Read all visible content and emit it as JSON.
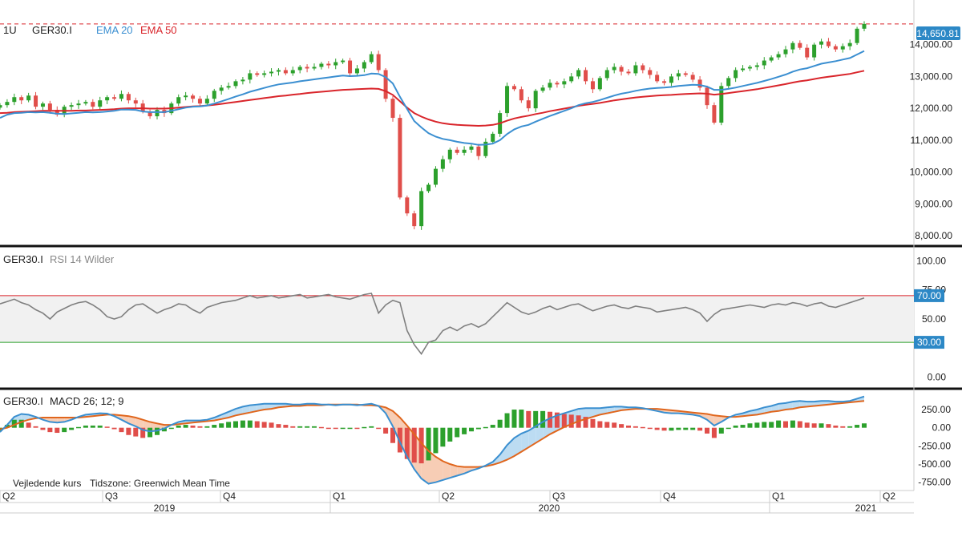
{
  "chart_data": [
    {
      "panel": "price",
      "type": "candlestick",
      "symbol": "GER30.I",
      "interval": "1U",
      "legend": [
        {
          "label": "EMA 20",
          "color": "#3b8fd1"
        },
        {
          "label": "EMA 50",
          "color": "#d9252b"
        }
      ],
      "last_price": "14,650.81",
      "last_price_value": 14650.81,
      "ylim": [
        7800,
        15200
      ],
      "y_ticks": [
        "14,000.00",
        "13,000.00",
        "12,000.00",
        "11,000.00",
        "10,000.00",
        "9,000.00",
        "8,000.00"
      ],
      "y_tick_values": [
        14000,
        13000,
        12000,
        11000,
        10000,
        9000,
        8000
      ],
      "closes": [
        12100,
        12200,
        12350,
        12250,
        12400,
        12050,
        12150,
        11950,
        11800,
        12050,
        12100,
        12150,
        12200,
        12050,
        12250,
        12350,
        12300,
        12450,
        12250,
        12150,
        11900,
        11750,
        11950,
        11850,
        12150,
        12350,
        12400,
        12300,
        12150,
        12300,
        12550,
        12650,
        12700,
        12850,
        12900,
        13100,
        13050,
        13100,
        13150,
        13200,
        13100,
        13200,
        13300,
        13250,
        13300,
        13400,
        13350,
        13450,
        13500,
        13100,
        13250,
        13450,
        13700,
        13200,
        12300,
        11700,
        9200,
        8700,
        8300,
        9400,
        9600,
        10100,
        10400,
        10700,
        10600,
        10700,
        10800,
        10500,
        10950,
        11200,
        11850,
        12700,
        12600,
        12250,
        12000,
        12550,
        12650,
        12800,
        12750,
        12850,
        13000,
        13200,
        12850,
        12600,
        12950,
        13200,
        13300,
        13150,
        13100,
        13350,
        13200,
        13050,
        12850,
        12800,
        13000,
        13100,
        13050,
        12900,
        12650,
        12100,
        11550,
        12700,
        12950,
        13200,
        13250,
        13300,
        13350,
        13500,
        13600,
        13700,
        13850,
        14050,
        13900,
        13600,
        14000,
        14100,
        13950,
        13850,
        13950,
        14050,
        14500,
        14650
      ],
      "ema20": [
        11700,
        11800,
        11850,
        11860,
        11880,
        11870,
        11880,
        11860,
        11830,
        11820,
        11840,
        11860,
        11880,
        11870,
        11880,
        11900,
        11920,
        11960,
        11960,
        11950,
        11900,
        11880,
        11880,
        11880,
        11920,
        11970,
        12020,
        12050,
        12060,
        12090,
        12150,
        12220,
        12290,
        12370,
        12440,
        12520,
        12580,
        12640,
        12700,
        12750,
        12780,
        12810,
        12850,
        12880,
        12910,
        12940,
        12970,
        13000,
        13030,
        13010,
        13020,
        13040,
        13090,
        13080,
        12980,
        12780,
        12360,
        11980,
        11600,
        11400,
        11220,
        11110,
        11040,
        11000,
        10950,
        10910,
        10890,
        10850,
        10860,
        10890,
        11000,
        11190,
        11340,
        11430,
        11480,
        11580,
        11670,
        11760,
        11840,
        11920,
        12000,
        12100,
        12160,
        12200,
        12260,
        12330,
        12400,
        12460,
        12500,
        12550,
        12590,
        12620,
        12640,
        12650,
        12670,
        12700,
        12720,
        12740,
        12730,
        12680,
        12580,
        12580,
        12610,
        12650,
        12700,
        12750,
        12800,
        12860,
        12920,
        12990,
        13060,
        13150,
        13220,
        13260,
        13330,
        13400,
        13440,
        13480,
        13530,
        13580,
        13690,
        13800
      ],
      "ema50": [
        11850,
        11860,
        11880,
        11890,
        11900,
        11910,
        11920,
        11920,
        11920,
        11920,
        11920,
        11930,
        11930,
        11940,
        11950,
        11960,
        11970,
        11990,
        12000,
        12000,
        12000,
        11990,
        11990,
        11990,
        12000,
        12020,
        12040,
        12060,
        12070,
        12090,
        12110,
        12140,
        12170,
        12200,
        12230,
        12260,
        12290,
        12320,
        12350,
        12380,
        12400,
        12430,
        12450,
        12480,
        12500,
        12520,
        12540,
        12560,
        12580,
        12590,
        12600,
        12610,
        12620,
        12610,
        12540,
        12420,
        12220,
        12020,
        11850,
        11740,
        11650,
        11580,
        11530,
        11500,
        11480,
        11470,
        11460,
        11450,
        11460,
        11480,
        11530,
        11610,
        11680,
        11730,
        11770,
        11820,
        11860,
        11910,
        11950,
        11990,
        12030,
        12080,
        12110,
        12140,
        12170,
        12210,
        12250,
        12280,
        12310,
        12340,
        12360,
        12380,
        12400,
        12410,
        12420,
        12440,
        12450,
        12460,
        12470,
        12460,
        12430,
        12450,
        12480,
        12510,
        12540,
        12570,
        12600,
        12640,
        12680,
        12720,
        12760,
        12810,
        12850,
        12880,
        12920,
        12960,
        12990,
        13020,
        13050,
        13080,
        13130,
        13180
      ]
    },
    {
      "panel": "rsi",
      "type": "line",
      "symbol": "GER30.I",
      "title": "RSI 14 Wilder",
      "ylim": [
        -5,
        105
      ],
      "y_ticks": [
        "100.00",
        "75.00",
        "50.00",
        "0.00"
      ],
      "y_tick_values": [
        100,
        75,
        50,
        0
      ],
      "overbought_label": "70.00",
      "overbought": 70,
      "oversold_label": "30.00",
      "oversold": 30,
      "values": [
        63,
        65,
        67,
        64,
        62,
        58,
        55,
        50,
        56,
        59,
        62,
        64,
        65,
        62,
        58,
        52,
        50,
        52,
        58,
        62,
        63,
        59,
        55,
        58,
        60,
        63,
        62,
        58,
        55,
        60,
        62,
        64,
        65,
        66,
        68,
        70,
        68,
        69,
        70,
        68,
        69,
        70,
        71,
        68,
        69,
        70,
        71,
        69,
        68,
        67,
        69,
        71,
        72,
        55,
        62,
        66,
        64,
        40,
        28,
        20,
        30,
        32,
        40,
        43,
        40,
        44,
        46,
        43,
        46,
        52,
        58,
        64,
        60,
        56,
        54,
        56,
        59,
        61,
        58,
        60,
        62,
        63,
        60,
        57,
        59,
        61,
        62,
        60,
        59,
        61,
        60,
        59,
        56,
        57,
        58,
        59,
        60,
        58,
        55,
        48,
        54,
        58,
        59,
        60,
        61,
        62,
        61,
        60,
        62,
        63,
        62,
        64,
        63,
        61,
        63,
        64,
        61,
        60,
        62,
        64,
        66,
        68
      ]
    },
    {
      "panel": "macd",
      "type": "line+bar",
      "symbol": "GER30.I",
      "title": "MACD 26; 12; 9",
      "ylim": [
        -820,
        460
      ],
      "y_ticks": [
        "250.00",
        "0.00",
        "-250.00",
        "-500.00",
        "-750.00"
      ],
      "y_tick_values": [
        250,
        0,
        -250,
        -500,
        -750
      ],
      "macd_color": "#3a8fd0",
      "signal_color": "#e0661d",
      "x_axis": {
        "quarters": [
          "Q2",
          "Q3",
          "Q4",
          "Q1",
          "Q2",
          "Q3",
          "Q4",
          "Q1",
          "Q2"
        ],
        "years": [
          "2019",
          "2020",
          "2021"
        ]
      },
      "footnotes": [
        "Vejledende kurs",
        "Tidszone: Greenwich Mean Time"
      ],
      "macd": [
        -60,
        40,
        150,
        190,
        180,
        150,
        110,
        80,
        70,
        80,
        110,
        150,
        180,
        190,
        200,
        195,
        160,
        110,
        60,
        20,
        -30,
        -50,
        -40,
        -10,
        40,
        80,
        100,
        100,
        100,
        110,
        140,
        180,
        220,
        260,
        290,
        310,
        320,
        330,
        330,
        330,
        330,
        320,
        320,
        330,
        330,
        320,
        320,
        310,
        320,
        320,
        310,
        320,
        330,
        300,
        200,
        20,
        -200,
        -400,
        -570,
        -700,
        -770,
        -750,
        -720,
        -690,
        -660,
        -630,
        -590,
        -560,
        -520,
        -470,
        -370,
        -240,
        -140,
        -80,
        -40,
        20,
        80,
        130,
        170,
        200,
        230,
        260,
        270,
        270,
        270,
        280,
        290,
        290,
        280,
        280,
        270,
        250,
        230,
        210,
        200,
        200,
        190,
        180,
        160,
        110,
        30,
        80,
        140,
        180,
        200,
        230,
        250,
        280,
        300,
        330,
        340,
        360,
        370,
        360,
        360,
        370,
        370,
        360,
        360,
        370,
        400,
        430
      ],
      "signal": [
        -20,
        0,
        40,
        80,
        110,
        130,
        140,
        140,
        140,
        140,
        140,
        140,
        150,
        160,
        170,
        180,
        180,
        170,
        160,
        140,
        110,
        80,
        60,
        40,
        40,
        50,
        60,
        70,
        80,
        90,
        100,
        120,
        140,
        170,
        190,
        210,
        230,
        250,
        260,
        280,
        290,
        300,
        300,
        310,
        310,
        310,
        320,
        320,
        320,
        320,
        320,
        310,
        310,
        300,
        280,
        230,
        140,
        30,
        -90,
        -210,
        -320,
        -400,
        -460,
        -500,
        -530,
        -540,
        -540,
        -540,
        -530,
        -510,
        -480,
        -440,
        -390,
        -330,
        -270,
        -210,
        -150,
        -90,
        -40,
        10,
        50,
        90,
        120,
        150,
        180,
        200,
        220,
        240,
        250,
        260,
        260,
        260,
        260,
        250,
        240,
        230,
        220,
        210,
        200,
        190,
        170,
        160,
        150,
        150,
        160,
        170,
        180,
        200,
        220,
        230,
        250,
        260,
        280,
        290,
        300,
        310,
        320,
        330,
        340,
        350,
        360,
        370
      ]
    }
  ]
}
